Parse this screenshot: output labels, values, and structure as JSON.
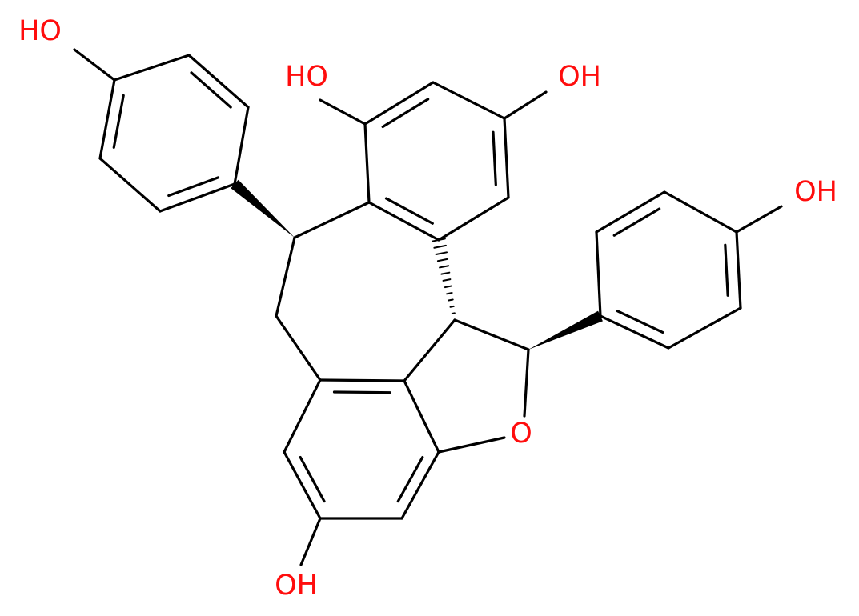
{
  "atoms": [
    {
      "label": "HO"
    },
    {
      "label": "HO"
    },
    {
      "label": "OH"
    },
    {
      "label": "OH"
    },
    {
      "label": "O"
    },
    {
      "label": "OH"
    }
  ]
}
